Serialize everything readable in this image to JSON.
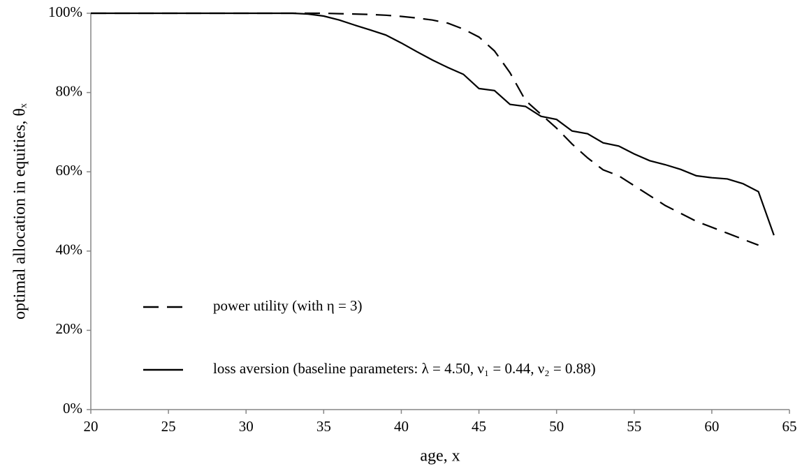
{
  "chart_data": {
    "type": "line",
    "x_label": "age, x",
    "y_label": "optimal allocation in equities, θₓ",
    "x": [
      20,
      21,
      22,
      23,
      24,
      25,
      26,
      27,
      28,
      29,
      30,
      31,
      32,
      33,
      34,
      35,
      36,
      37,
      38,
      39,
      40,
      41,
      42,
      43,
      44,
      45,
      46,
      47,
      48,
      49,
      50,
      51,
      52,
      53,
      54,
      55,
      56,
      57,
      58,
      59,
      60,
      61,
      62,
      63,
      64
    ],
    "series": [
      {
        "name": "power utility (with η = 3)",
        "color": "#000000",
        "dash": "22 12",
        "values": [
          100,
          100,
          100,
          100,
          100,
          100,
          100,
          100,
          100,
          100,
          100,
          100,
          100,
          100,
          100,
          100,
          99.9,
          99.8,
          99.7,
          99.5,
          99.2,
          98.8,
          98.3,
          97.5,
          96,
          94,
          90.5,
          85,
          78,
          74.5,
          71,
          67,
          63.5,
          60.5,
          59,
          56.5,
          54,
          51.5,
          49.5,
          47.5,
          46,
          44.5,
          43,
          41.5,
          null
        ]
      },
      {
        "name": "loss aversion (baseline parameters: λ = 4.50,  ν₁ = 0.44,  ν₂ = 0.88)",
        "color": "#000000",
        "dash": "none",
        "values": [
          100,
          100,
          100,
          100,
          100,
          100,
          100,
          100,
          100,
          100,
          100,
          100,
          100,
          100,
          99.8,
          99.3,
          98.3,
          97,
          95.8,
          94.5,
          92.5,
          90.3,
          88.2,
          86.3,
          84.6,
          81,
          80.5,
          77,
          76.5,
          74,
          73.2,
          70.3,
          69.6,
          67.3,
          66.5,
          64.5,
          62.8,
          61.8,
          60.6,
          59,
          58.5,
          58.2,
          57,
          55,
          44
        ]
      }
    ],
    "xlim": [
      20,
      65
    ],
    "xticks": [
      20,
      25,
      30,
      35,
      40,
      45,
      50,
      55,
      60,
      65
    ],
    "ylim": [
      0,
      100
    ],
    "yticks": [
      {
        "value": 0,
        "label": "0%"
      },
      {
        "value": 20,
        "label": "20%"
      },
      {
        "value": 40,
        "label": "40%"
      },
      {
        "value": 60,
        "label": "60%"
      },
      {
        "value": 80,
        "label": "80%"
      },
      {
        "value": 100,
        "label": "100%"
      }
    ],
    "grid": false
  }
}
